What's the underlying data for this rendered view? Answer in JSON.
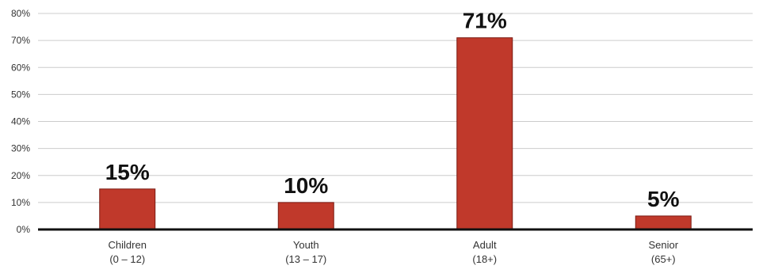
{
  "chart_data": {
    "type": "bar",
    "categories": [
      [
        "Children",
        "(0 – 12)"
      ],
      [
        "Youth",
        "(13 – 17)"
      ],
      [
        "Adult",
        "(18+)"
      ],
      [
        "Senior",
        "(65+)"
      ]
    ],
    "values": [
      15,
      10,
      71,
      5
    ],
    "data_labels": [
      "15%",
      "10%",
      "71%",
      "5%"
    ],
    "ylim": [
      0,
      80
    ],
    "yticks": [
      0,
      10,
      20,
      30,
      40,
      50,
      60,
      70,
      80
    ],
    "ytick_labels": [
      "0%",
      "10%",
      "20%",
      "30%",
      "40%",
      "50%",
      "60%",
      "70%",
      "80%"
    ],
    "grid": true,
    "bar_color": "#c0392b"
  }
}
